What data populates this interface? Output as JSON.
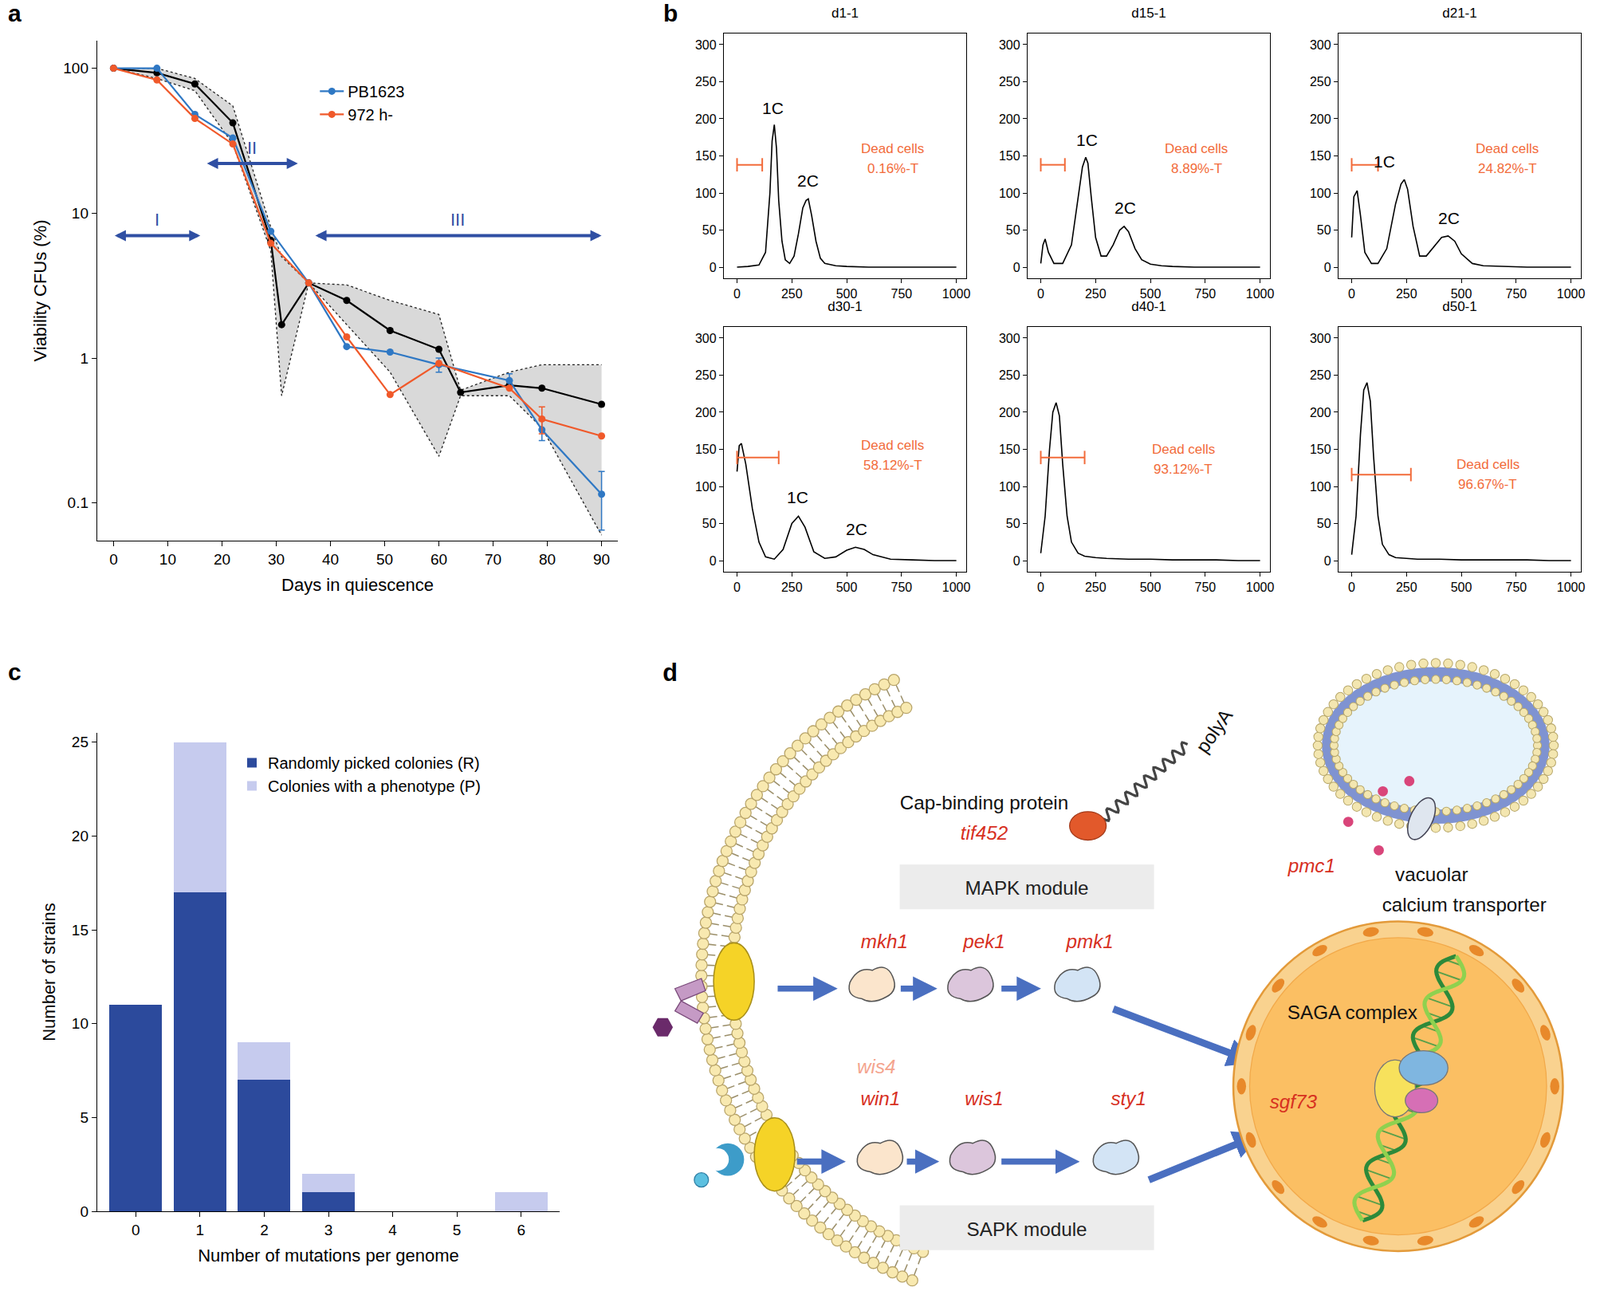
{
  "chart_data": [
    {
      "panel": "a",
      "type": "line",
      "x_label": "Days in quiescence",
      "y_label": "Viability CFUs (%)",
      "log": "y",
      "xlim": [
        -3,
        93
      ],
      "ylim": [
        0.055,
        155
      ],
      "xticks": [
        0,
        10,
        20,
        30,
        40,
        50,
        60,
        70,
        80,
        90
      ],
      "yticks": [
        0.1,
        1,
        10,
        100
      ],
      "legend": "top",
      "series": [
        {
          "color": "#000000",
          "marker": "circle",
          "x": [
            0,
            8,
            15,
            22,
            29,
            31,
            36,
            43,
            51,
            60,
            64,
            73,
            79,
            90
          ],
          "values": [
            100,
            93,
            78,
            42,
            6.5,
            1.7,
            3.3,
            2.5,
            1.55,
            1.15,
            0.58,
            0.65,
            0.62,
            0.48
          ]
        },
        {
          "name": "PB1623",
          "color": "#2f78c4",
          "marker": "circle",
          "x": [
            0,
            8,
            15,
            22,
            29,
            36,
            43,
            51,
            60,
            73,
            79,
            90
          ],
          "values": [
            100,
            100,
            48,
            33,
            7.5,
            3.3,
            1.2,
            1.1,
            0.9,
            0.7,
            0.32,
            0.115
          ],
          "errors": [
            null,
            null,
            null,
            null,
            null,
            null,
            null,
            null,
            0.1,
            0.08,
            0.05,
            0.05
          ]
        },
        {
          "name": "972 h-",
          "color": "#f0592a",
          "marker": "circle",
          "x": [
            0,
            8,
            15,
            22,
            29,
            36,
            43,
            51,
            60,
            73,
            79,
            90
          ],
          "values": [
            100,
            83,
            45,
            30,
            6.2,
            3.3,
            1.4,
            0.56,
            0.92,
            0.62,
            0.38,
            0.29
          ],
          "errors": [
            null,
            null,
            null,
            null,
            null,
            null,
            null,
            null,
            null,
            null,
            0.08,
            null
          ]
        }
      ],
      "band": {
        "color": "#d9d9d9",
        "line_style": "dotted",
        "x": [
          0,
          8,
          15,
          22,
          29,
          31,
          36,
          43,
          51,
          60,
          64,
          73,
          79,
          90
        ],
        "upper": [
          100,
          100,
          85,
          55,
          8,
          5,
          3.3,
          3.2,
          2.5,
          2.0,
          0.6,
          0.8,
          0.9,
          0.9
        ],
        "lower": [
          100,
          85,
          70,
          30,
          5.5,
          0.55,
          3.3,
          1.7,
          0.8,
          0.21,
          0.55,
          0.55,
          0.33,
          0.06
        ]
      },
      "annotations": [
        {
          "text": "I",
          "x0": 0,
          "x1": 16,
          "y": 7,
          "color": "#2f4fa3"
        },
        {
          "text": "II",
          "x0": 17,
          "x1": 34,
          "y": 22,
          "color": "#2f4fa3"
        },
        {
          "text": "III",
          "x0": 37,
          "x1": 90,
          "y": 7,
          "color": "#2f4fa3"
        }
      ]
    },
    {
      "panel": "b",
      "type": "line",
      "title": "d1-1",
      "color": "#000000",
      "xlim": [
        -60,
        1045
      ],
      "ylim": [
        -15,
        315
      ],
      "xticks": [
        0,
        250,
        500,
        750,
        1000
      ],
      "yticks": [
        0,
        50,
        100,
        150,
        200,
        250,
        300
      ],
      "x": [
        0,
        50,
        100,
        130,
        150,
        160,
        170,
        180,
        190,
        205,
        220,
        240,
        260,
        280,
        300,
        315,
        325,
        340,
        360,
        380,
        400,
        450,
        500,
        600,
        700,
        800,
        900,
        1000
      ],
      "values": [
        0,
        1,
        3,
        20,
        100,
        170,
        192,
        160,
        90,
        35,
        10,
        5,
        15,
        45,
        80,
        90,
        92,
        70,
        35,
        12,
        5,
        2,
        1,
        0,
        0,
        0,
        0,
        0
      ],
      "gate": {
        "x": [
          0,
          115
        ],
        "y": 138,
        "color": "#f26b3a"
      },
      "annotations": [
        {
          "text": "1C",
          "x": 165,
          "y": 215
        },
        {
          "text": "2C",
          "x": 325,
          "y": 117
        },
        {
          "text": "Dead cells",
          "x": 710,
          "y": 160,
          "color": "#f26b3a"
        },
        {
          "text": "0.16%-T",
          "x": 710,
          "y": 133,
          "color": "#f26b3a"
        }
      ]
    },
    {
      "type": "line",
      "title": "d15-1",
      "color": "#000000",
      "xlim": [
        -60,
        1045
      ],
      "ylim": [
        -15,
        315
      ],
      "xticks": [
        0,
        250,
        500,
        750,
        1000
      ],
      "yticks": [
        0,
        50,
        100,
        150,
        200,
        250,
        300
      ],
      "x": [
        0,
        10,
        20,
        35,
        60,
        100,
        140,
        170,
        190,
        205,
        215,
        230,
        250,
        275,
        300,
        330,
        360,
        380,
        400,
        430,
        460,
        500,
        550,
        600,
        700,
        800,
        900,
        1000
      ],
      "values": [
        5,
        30,
        38,
        20,
        5,
        5,
        30,
        90,
        135,
        148,
        140,
        95,
        40,
        15,
        15,
        30,
        50,
        55,
        48,
        25,
        10,
        4,
        2,
        1,
        0,
        0,
        0,
        0
      ],
      "gate": {
        "x": [
          0,
          110
        ],
        "y": 138,
        "color": "#f26b3a"
      },
      "annotations": [
        {
          "text": "1C",
          "x": 210,
          "y": 172
        },
        {
          "text": "2C",
          "x": 385,
          "y": 80
        },
        {
          "text": "Dead cells",
          "x": 710,
          "y": 160,
          "color": "#f26b3a"
        },
        {
          "text": "8.89%-T",
          "x": 710,
          "y": 133,
          "color": "#f26b3a"
        }
      ]
    },
    {
      "type": "line",
      "title": "d21-1",
      "color": "#000000",
      "xlim": [
        -60,
        1045
      ],
      "ylim": [
        -15,
        315
      ],
      "xticks": [
        0,
        250,
        500,
        750,
        1000
      ],
      "yticks": [
        0,
        50,
        100,
        150,
        200,
        250,
        300
      ],
      "x": [
        0,
        10,
        25,
        40,
        60,
        90,
        120,
        160,
        200,
        225,
        240,
        255,
        280,
        310,
        340,
        380,
        410,
        440,
        470,
        500,
        550,
        600,
        700,
        800,
        900,
        1000
      ],
      "values": [
        40,
        95,
        103,
        70,
        20,
        5,
        5,
        25,
        85,
        112,
        118,
        105,
        55,
        15,
        15,
        30,
        40,
        42,
        35,
        18,
        5,
        2,
        1,
        0,
        0,
        0
      ],
      "gate": {
        "x": [
          0,
          120
        ],
        "y": 138,
        "color": "#f26b3a"
      },
      "annotations": [
        {
          "text": "1C",
          "x": 150,
          "y": 142
        },
        {
          "text": "2C",
          "x": 445,
          "y": 66
        },
        {
          "text": "Dead cells",
          "x": 710,
          "y": 160,
          "color": "#f26b3a"
        },
        {
          "text": "24.82%-T",
          "x": 710,
          "y": 133,
          "color": "#f26b3a"
        }
      ]
    },
    {
      "type": "line",
      "title": "d30-1",
      "color": "#000000",
      "xlim": [
        -60,
        1045
      ],
      "ylim": [
        -15,
        315
      ],
      "xticks": [
        0,
        250,
        500,
        750,
        1000
      ],
      "yticks": [
        0,
        50,
        100,
        150,
        200,
        250,
        300
      ],
      "x": [
        0,
        10,
        20,
        40,
        70,
        100,
        130,
        170,
        210,
        250,
        280,
        310,
        350,
        400,
        450,
        500,
        540,
        580,
        620,
        700,
        800,
        900,
        1000
      ],
      "values": [
        120,
        155,
        158,
        130,
        70,
        25,
        5,
        2,
        15,
        50,
        60,
        45,
        12,
        3,
        5,
        14,
        18,
        15,
        8,
        2,
        1,
        0,
        0
      ],
      "gate": {
        "x": [
          0,
          190
        ],
        "y": 139,
        "color": "#f26b3a"
      },
      "annotations": [
        {
          "text": "1C",
          "x": 275,
          "y": 85
        },
        {
          "text": "2C",
          "x": 545,
          "y": 43
        },
        {
          "text": "Dead cells",
          "x": 710,
          "y": 155,
          "color": "#f26b3a"
        },
        {
          "text": "58.12%-T",
          "x": 710,
          "y": 128,
          "color": "#f26b3a"
        }
      ]
    },
    {
      "type": "line",
      "title": "d40-1",
      "color": "#000000",
      "xlim": [
        -60,
        1045
      ],
      "ylim": [
        -15,
        315
      ],
      "xticks": [
        0,
        250,
        500,
        750,
        1000
      ],
      "yticks": [
        0,
        50,
        100,
        150,
        200,
        250,
        300
      ],
      "x": [
        0,
        20,
        40,
        55,
        70,
        85,
        100,
        120,
        140,
        170,
        200,
        250,
        300,
        400,
        500,
        600,
        700,
        800,
        900,
        1000
      ],
      "values": [
        10,
        60,
        150,
        200,
        213,
        195,
        130,
        60,
        25,
        10,
        6,
        4,
        3,
        2,
        2,
        1,
        1,
        1,
        0,
        0
      ],
      "gate": {
        "x": [
          0,
          200
        ],
        "y": 139,
        "color": "#f26b3a"
      },
      "annotations": [
        {
          "text": "Dead cells",
          "x": 650,
          "y": 150,
          "color": "#f26b3a"
        },
        {
          "text": "93.12%-T",
          "x": 650,
          "y": 123,
          "color": "#f26b3a"
        }
      ]
    },
    {
      "type": "line",
      "title": "d50-1",
      "color": "#000000",
      "xlim": [
        -60,
        1045
      ],
      "ylim": [
        -15,
        315
      ],
      "xticks": [
        0,
        250,
        500,
        750,
        1000
      ],
      "yticks": [
        0,
        50,
        100,
        150,
        200,
        250,
        300
      ],
      "x": [
        0,
        20,
        40,
        55,
        70,
        85,
        100,
        120,
        140,
        170,
        200,
        250,
        300,
        400,
        500,
        600,
        700,
        800,
        900,
        1000
      ],
      "values": [
        8,
        60,
        170,
        230,
        240,
        215,
        140,
        60,
        22,
        8,
        4,
        3,
        2,
        2,
        1,
        1,
        1,
        1,
        0,
        0
      ],
      "gate": {
        "x": [
          0,
          270
        ],
        "y": 116,
        "color": "#f26b3a"
      },
      "annotations": [
        {
          "text": "Dead cells",
          "x": 620,
          "y": 130,
          "color": "#f26b3a"
        },
        {
          "text": "96.67%-T",
          "x": 620,
          "y": 103,
          "color": "#f26b3a"
        }
      ]
    },
    {
      "panel": "c",
      "type": "bar",
      "stacked": true,
      "x_label": "Number of mutations per genome",
      "y_label": "Number of strains",
      "x": [
        0,
        1,
        2,
        3,
        4,
        5,
        6
      ],
      "xlim": [
        -0.6,
        6.6
      ],
      "ylim": [
        0,
        25.5
      ],
      "xticks": [
        0,
        1,
        2,
        3,
        4,
        5,
        6
      ],
      "yticks": [
        0,
        5,
        10,
        15,
        20,
        25
      ],
      "legend": "top",
      "series": [
        {
          "name": "Randomly picked colonies (R)",
          "color": "#2c4a9c",
          "values": [
            11,
            17,
            7,
            1,
            0,
            0,
            0
          ]
        },
        {
          "name": "Colonies with a phenotype (P)",
          "color": "#c6cbee",
          "values": [
            0,
            8,
            2,
            1,
            0,
            0,
            1
          ]
        }
      ]
    }
  ],
  "diagram": {
    "panel": "d",
    "cap_binding_protein": {
      "label": "Cap-binding protein",
      "gene": "tif452",
      "tail": "polyA"
    },
    "mapk_module": {
      "label": "MAPK module",
      "genes": [
        "mkh1",
        "pek1",
        "pmk1"
      ]
    },
    "sapk_module": {
      "label": "SAPK module",
      "upstream": "wis4",
      "genes": [
        "win1",
        "wis1",
        "sty1"
      ]
    },
    "vacuole": {
      "gene": "pmc1",
      "label": "vacuolar",
      "label2": "calcium transporter"
    },
    "nucleus": {
      "label": "SAGA complex",
      "gene": "sgf73"
    }
  }
}
